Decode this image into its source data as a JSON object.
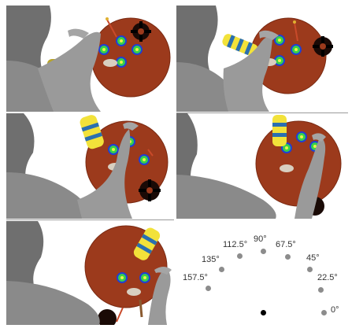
{
  "colors": {
    "disk": "#9c3a1c",
    "disk_edge": "#7a2a12",
    "target_ring": "#1f3fd6",
    "target_fill": "#37d24a",
    "target_center": "#e8f24a",
    "cylinder_yellow": "#f2e23a",
    "cylinder_blue": "#2a6fb0",
    "arm_gray": "#8d8d8d",
    "dot_gray": "#8c8c8c",
    "dot_black": "#000000"
  },
  "panels": [
    {
      "name": "panel-top-left"
    },
    {
      "name": "panel-top-right"
    },
    {
      "name": "panel-middle-left"
    },
    {
      "name": "panel-middle-right"
    },
    {
      "name": "panel-bottom-left"
    }
  ],
  "direction_legend": {
    "angles": [
      {
        "label": "0°",
        "active": false
      },
      {
        "label": "22.5°",
        "active": false
      },
      {
        "label": "45°",
        "active": false
      },
      {
        "label": "67.5°",
        "active": false
      },
      {
        "label": "90°",
        "active": false
      },
      {
        "label": "112.5°",
        "active": false
      },
      {
        "label": "135°",
        "active": false
      },
      {
        "label": "157.5°",
        "active": false
      },
      {
        "label": "",
        "active": true
      }
    ]
  }
}
